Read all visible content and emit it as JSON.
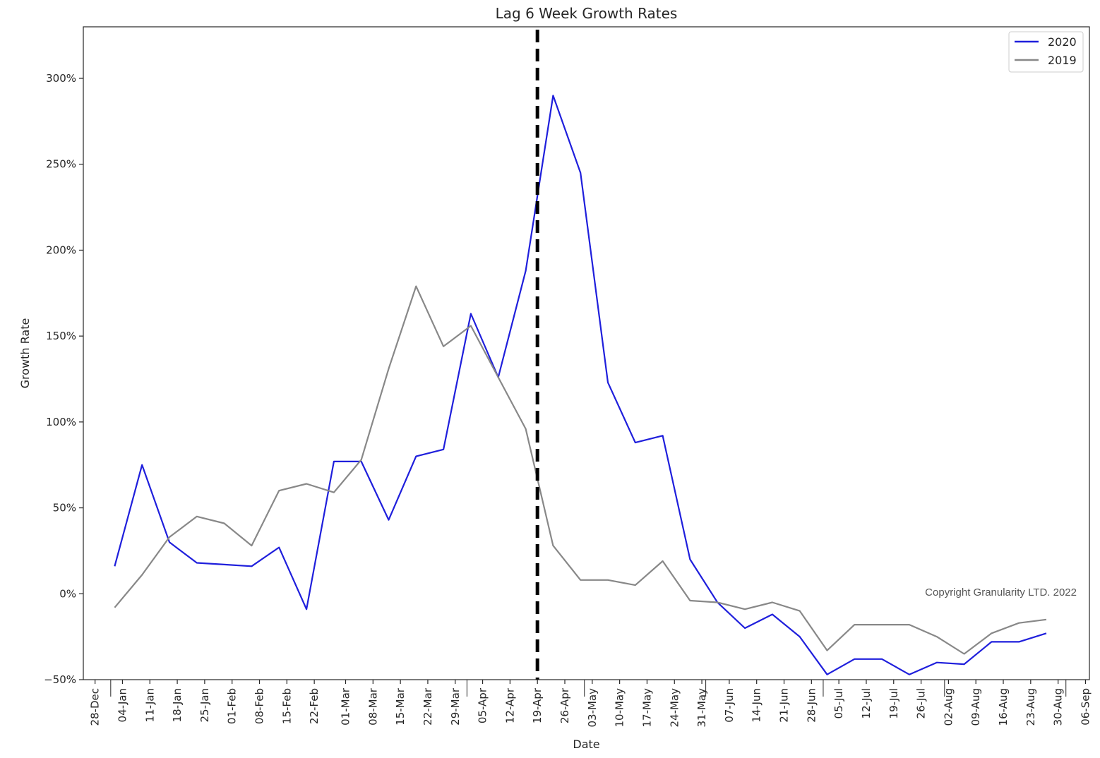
{
  "chart_data": {
    "type": "line",
    "title": "Lag 6 Week Growth Rates",
    "xlabel": "Date",
    "ylabel": "Growth Rate",
    "ylim": [
      -50,
      330
    ],
    "yticks": [
      -50,
      0,
      50,
      100,
      150,
      200,
      250,
      300
    ],
    "ytick_labels": [
      "−50%",
      "0%",
      "50%",
      "100%",
      "150%",
      "200%",
      "250%",
      "300%"
    ],
    "xlim": [
      "2019-12-25",
      "2020-09-07"
    ],
    "xtick_dates": [
      "2019-12-28",
      "2020-01-04",
      "2020-01-11",
      "2020-01-18",
      "2020-01-25",
      "2020-02-01",
      "2020-02-08",
      "2020-02-15",
      "2020-02-22",
      "2020-03-01",
      "2020-03-08",
      "2020-03-15",
      "2020-03-22",
      "2020-03-29",
      "2020-04-05",
      "2020-04-12",
      "2020-04-19",
      "2020-04-26",
      "2020-05-03",
      "2020-05-10",
      "2020-05-17",
      "2020-05-24",
      "2020-05-31",
      "2020-06-07",
      "2020-06-14",
      "2020-06-21",
      "2020-06-28",
      "2020-07-05",
      "2020-07-12",
      "2020-07-19",
      "2020-07-26",
      "2020-08-02",
      "2020-08-09",
      "2020-08-16",
      "2020-08-23",
      "2020-08-30",
      "2020-09-06"
    ],
    "xtick_labels": [
      "28-Dec",
      "04-Jan",
      "11-Jan",
      "18-Jan",
      "25-Jan",
      "01-Feb",
      "08-Feb",
      "15-Feb",
      "22-Feb",
      "01-Mar",
      "08-Mar",
      "15-Mar",
      "22-Mar",
      "29-Mar",
      "05-Apr",
      "12-Apr",
      "19-Apr",
      "26-Apr",
      "03-May",
      "10-May",
      "17-May",
      "24-May",
      "31-May",
      "07-Jun",
      "14-Jun",
      "21-Jun",
      "28-Jun",
      "05-Jul",
      "12-Jul",
      "19-Jul",
      "26-Jul",
      "02-Aug",
      "09-Aug",
      "16-Aug",
      "23-Aug",
      "30-Aug",
      "06-Sep"
    ],
    "month_start_dates": [
      "2020-01-01",
      "2020-04-01",
      "2020-05-01",
      "2020-06-01",
      "2020-07-01",
      "2020-08-01",
      "2020-09-01"
    ],
    "x": [
      "2020-01-02",
      "2020-01-09",
      "2020-01-16",
      "2020-01-23",
      "2020-01-30",
      "2020-02-06",
      "2020-02-13",
      "2020-02-20",
      "2020-02-27",
      "2020-03-05",
      "2020-03-12",
      "2020-03-19",
      "2020-03-26",
      "2020-04-02",
      "2020-04-09",
      "2020-04-16",
      "2020-04-23",
      "2020-04-30",
      "2020-05-07",
      "2020-05-14",
      "2020-05-21",
      "2020-05-28",
      "2020-06-04",
      "2020-06-11",
      "2020-06-18",
      "2020-06-25",
      "2020-07-02",
      "2020-07-09",
      "2020-07-16",
      "2020-07-23",
      "2020-07-30",
      "2020-08-06",
      "2020-08-13",
      "2020-08-20",
      "2020-08-27"
    ],
    "series": [
      {
        "name": "2020",
        "color": "#1f1fdc",
        "values": [
          16,
          75,
          30,
          18,
          17,
          16,
          27,
          -9,
          77,
          77,
          43,
          80,
          84,
          163,
          126,
          188,
          290,
          245,
          123,
          88,
          92,
          20,
          -5,
          -20,
          -12,
          -25,
          -47,
          -38,
          -38,
          -47,
          -40,
          -41,
          -28,
          -28,
          -23
        ]
      },
      {
        "name": "2019",
        "color": "#888888",
        "values": [
          -8,
          11,
          33,
          45,
          41,
          28,
          60,
          64,
          59,
          78,
          131,
          179,
          144,
          156,
          126,
          96,
          28,
          8,
          8,
          5,
          19,
          -4,
          -5,
          -9,
          -5,
          -10,
          -33,
          -18,
          -18,
          -18,
          -25,
          -35,
          -23,
          -17,
          -15
        ]
      }
    ],
    "vline": {
      "date": "2020-04-19",
      "color": "#000000",
      "style": "dashed"
    },
    "legend_position": "top-right",
    "grid": false,
    "annotation": "Copyright Granularity LTD. 2022"
  }
}
